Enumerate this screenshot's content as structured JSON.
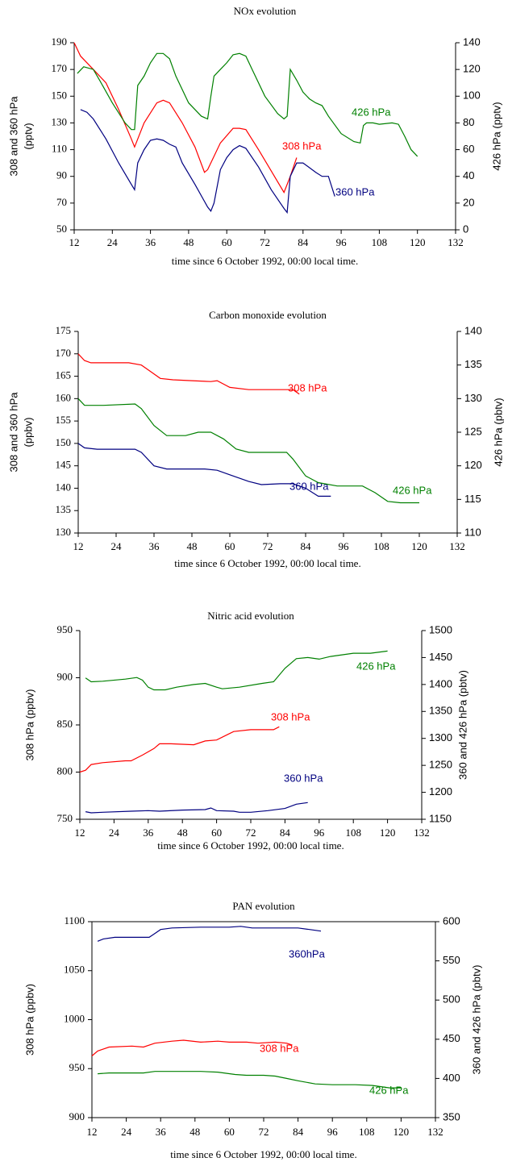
{
  "chart_data": [
    {
      "type": "line",
      "title": "NOx evolution",
      "xlabel": "time since 6 October 1992, 00:00 local time.",
      "ylabel": [
        "308 and 360 hPa",
        "(pptv)"
      ],
      "y2label": [
        "426 hPa (pptv)"
      ],
      "xlim": [
        12,
        132
      ],
      "xticks": [
        12,
        24,
        36,
        48,
        60,
        72,
        84,
        96,
        108,
        120,
        132
      ],
      "ylim": [
        50,
        190
      ],
      "yticks": [
        50,
        70,
        90,
        110,
        130,
        150,
        170,
        190
      ],
      "y2lim": [
        0,
        140
      ],
      "y2ticks": [
        0,
        20,
        40,
        60,
        80,
        100,
        120,
        140
      ],
      "series": [
        {
          "name": "308 hPa",
          "color": "#ff0000",
          "axis": "y",
          "x": [
            12,
            14,
            18,
            22,
            26,
            30,
            31,
            34,
            38,
            40,
            42,
            46,
            50,
            53,
            54,
            58,
            62,
            64,
            66,
            70,
            74,
            78,
            80,
            82
          ],
          "values": [
            190,
            180,
            170,
            160,
            140,
            118,
            112,
            130,
            145,
            147,
            145,
            130,
            112,
            93,
            95,
            115,
            126,
            126,
            125,
            110,
            94,
            78,
            90,
            104
          ]
        },
        {
          "name": "360 hPa",
          "color": "#000080",
          "axis": "y",
          "x": [
            14,
            16,
            18,
            22,
            26,
            30,
            31,
            32,
            34,
            36,
            38,
            40,
            42,
            44,
            46,
            50,
            54,
            55,
            56,
            58,
            60,
            62,
            64,
            66,
            70,
            74,
            78,
            79,
            80,
            82,
            84,
            88,
            90,
            92,
            94
          ],
          "values": [
            140,
            138,
            133,
            118,
            100,
            84,
            80,
            100,
            110,
            117,
            118,
            117,
            114,
            112,
            100,
            84,
            67,
            64,
            70,
            95,
            104,
            110,
            113,
            111,
            97,
            80,
            66,
            63,
            90,
            100,
            100,
            93,
            90,
            90,
            75
          ]
        },
        {
          "name": "426 hPa",
          "color": "#008000",
          "axis": "y2",
          "x": [
            13,
            15,
            18,
            20,
            24,
            28,
            30,
            31,
            32,
            34,
            36,
            38,
            40,
            42,
            44,
            48,
            52,
            54,
            55,
            56,
            58,
            60,
            62,
            64,
            66,
            68,
            72,
            76,
            78,
            79,
            80,
            82,
            84,
            86,
            88,
            90,
            92,
            96,
            100,
            102,
            103,
            104,
            106,
            108,
            112,
            114,
            116,
            118,
            120
          ],
          "values": [
            117,
            122,
            120,
            112,
            95,
            80,
            75,
            75,
            108,
            115,
            125,
            132,
            132,
            128,
            115,
            95,
            85,
            83,
            100,
            115,
            120,
            125,
            131,
            132,
            130,
            120,
            100,
            87,
            83,
            85,
            120,
            112,
            103,
            98,
            95,
            93,
            85,
            72,
            66,
            65,
            78,
            80,
            80,
            79,
            80,
            79,
            70,
            60,
            55
          ]
        }
      ]
    },
    {
      "type": "line",
      "title": "Carbon monoxide evolution",
      "xlabel": "time since 6 October 1992, 00:00 local time.",
      "ylabel": [
        "308 and 360 hPa",
        "(ppbv)"
      ],
      "y2label": [
        "426 hPa (pbtv)"
      ],
      "xlim": [
        12,
        132
      ],
      "xticks": [
        12,
        24,
        36,
        48,
        60,
        72,
        84,
        96,
        108,
        120,
        132
      ],
      "ylim": [
        130,
        175
      ],
      "yticks": [
        130,
        135,
        140,
        145,
        150,
        155,
        160,
        165,
        170,
        175
      ],
      "y2lim": [
        110,
        140
      ],
      "y2ticks": [
        110,
        115,
        120,
        125,
        130,
        135,
        140
      ],
      "series": [
        {
          "name": "308 hPa",
          "color": "#ff0000",
          "axis": "y",
          "x": [
            12,
            14,
            16,
            20,
            24,
            28,
            32,
            34,
            38,
            42,
            48,
            54,
            56,
            60,
            66,
            72,
            76,
            80,
            82
          ],
          "values": [
            170,
            168.5,
            168,
            168,
            168,
            168,
            167.5,
            166.5,
            164.5,
            164.2,
            164,
            163.8,
            164,
            162.5,
            162,
            162,
            162,
            162,
            161
          ]
        },
        {
          "name": "360 hPa",
          "color": "#000080",
          "axis": "y",
          "x": [
            12,
            14,
            18,
            30,
            32,
            36,
            40,
            44,
            52,
            56,
            60,
            66,
            70,
            76,
            80,
            84,
            88,
            92
          ],
          "values": [
            150,
            149,
            148.7,
            148.7,
            148,
            145,
            144.3,
            144.3,
            144.3,
            144,
            143,
            141.5,
            140.8,
            141,
            141,
            140,
            138.2,
            138.2
          ]
        },
        {
          "name": "426 hPa",
          "color": "#008000",
          "axis": "y2",
          "x": [
            12,
            14,
            20,
            30,
            32,
            36,
            40,
            46,
            50,
            54,
            58,
            62,
            66,
            78,
            80,
            84,
            88,
            94,
            102,
            106,
            110,
            114,
            120
          ],
          "values": [
            130,
            129,
            129,
            129.2,
            128.5,
            126,
            124.5,
            124.5,
            125,
            125,
            124,
            122.5,
            122,
            122,
            121,
            118.5,
            117.5,
            117,
            117,
            116,
            114.7,
            114.5,
            114.5
          ]
        }
      ]
    },
    {
      "type": "line",
      "title": "Nitric acid evolution",
      "xlabel": "time since 6 October 1992, 00:00 local time.",
      "ylabel": [
        "308 hPa (ppbv)"
      ],
      "y2label": [
        "360 and 426 hPa (pbtv)"
      ],
      "xlim": [
        12,
        132
      ],
      "xticks": [
        12,
        24,
        36,
        48,
        60,
        72,
        84,
        96,
        108,
        120,
        132
      ],
      "ylim": [
        750,
        950
      ],
      "yticks": [
        750,
        800,
        850,
        900,
        950
      ],
      "y2lim": [
        1150,
        1500
      ],
      "y2ticks": [
        1150,
        1200,
        1250,
        1300,
        1350,
        1400,
        1450,
        1500
      ],
      "series": [
        {
          "name": "308 hPa",
          "color": "#ff0000",
          "axis": "y",
          "x": [
            12,
            14,
            16,
            20,
            28,
            30,
            34,
            38,
            40,
            44,
            52,
            56,
            60,
            64,
            66,
            72,
            80,
            82
          ],
          "values": [
            800,
            802,
            808,
            810,
            812,
            812,
            818,
            825,
            830,
            830,
            829,
            833,
            834,
            840,
            843,
            845,
            845,
            848
          ]
        },
        {
          "name": "360 hPa",
          "color": "#000080",
          "axis": "y2",
          "x": [
            14,
            16,
            20,
            30,
            36,
            40,
            48,
            56,
            58,
            60,
            66,
            68,
            72,
            78,
            84,
            88,
            92
          ],
          "values": [
            1164,
            1162,
            1163,
            1165,
            1166,
            1165,
            1167,
            1168,
            1171,
            1166,
            1165,
            1163,
            1163,
            1166,
            1170,
            1178,
            1181
          ]
        },
        {
          "name": "426 hPa",
          "color": "#008000",
          "axis": "y2",
          "x": [
            14,
            16,
            20,
            28,
            32,
            34,
            36,
            38,
            42,
            46,
            52,
            56,
            60,
            62,
            68,
            76,
            80,
            84,
            88,
            92,
            96,
            100,
            108,
            114,
            120
          ],
          "values": [
            1412,
            1405,
            1406,
            1410,
            1413,
            1408,
            1395,
            1390,
            1390,
            1395,
            1400,
            1402,
            1395,
            1392,
            1395,
            1402,
            1405,
            1430,
            1448,
            1450,
            1447,
            1452,
            1458,
            1458,
            1462
          ]
        }
      ]
    },
    {
      "type": "line",
      "title": "PAN evolution",
      "xlabel": "time since 6 October 1992, 00:00 local time.",
      "ylabel": [
        "308 hPa (ppbv)"
      ],
      "y2label": [
        "360 and 426 hPa (pbtv)"
      ],
      "xlim": [
        12,
        132
      ],
      "xticks": [
        12,
        24,
        36,
        48,
        60,
        72,
        84,
        96,
        108,
        120,
        132
      ],
      "ylim": [
        900,
        1100
      ],
      "yticks": [
        900,
        950,
        1000,
        1050,
        1100
      ],
      "y2lim": [
        350,
        600
      ],
      "y2ticks": [
        350,
        400,
        450,
        500,
        550,
        600
      ],
      "series": [
        {
          "name": "360hPa",
          "color": "#000080",
          "axis": "y2",
          "x": [
            14,
            16,
            20,
            32,
            34,
            36,
            40,
            50,
            60,
            64,
            68,
            76,
            84,
            88,
            92
          ],
          "values": [
            575,
            578,
            580,
            580,
            585,
            590,
            592,
            593,
            593,
            594,
            592,
            592,
            592,
            590,
            588
          ]
        },
        {
          "name": "308 hPa",
          "color": "#ff0000",
          "axis": "y",
          "x": [
            12,
            14,
            18,
            26,
            30,
            34,
            40,
            44,
            50,
            56,
            60,
            66,
            70,
            76,
            80,
            82
          ],
          "values": [
            963,
            968,
            972,
            973,
            972,
            976,
            978,
            979,
            977,
            978,
            977,
            977,
            976,
            977,
            976,
            974
          ]
        },
        {
          "name": "426 hPa",
          "color": "#008000",
          "axis": "y2",
          "x": [
            14,
            18,
            30,
            34,
            40,
            50,
            56,
            62,
            66,
            72,
            76,
            80,
            84,
            90,
            96,
            104,
            110,
            116,
            120
          ],
          "values": [
            406,
            407,
            407,
            409,
            409,
            409,
            408,
            405,
            404,
            404,
            403,
            400,
            397,
            393,
            392,
            392,
            391,
            388,
            388
          ]
        }
      ]
    }
  ]
}
